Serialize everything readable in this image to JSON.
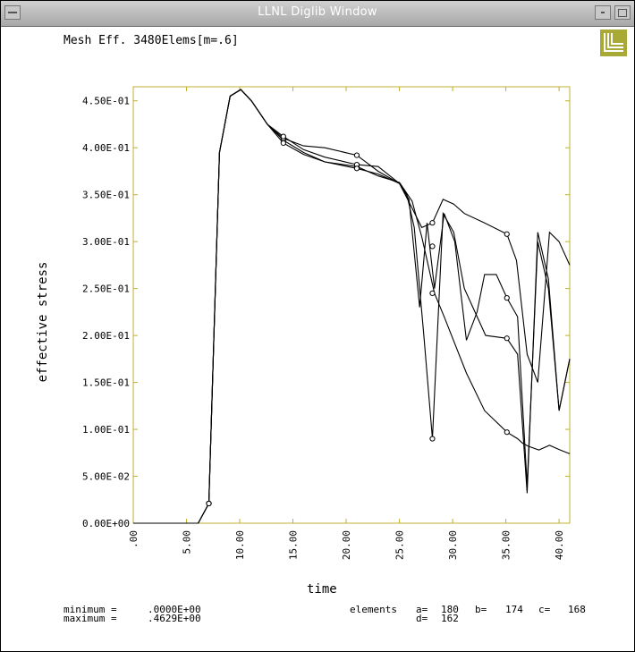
{
  "window": {
    "title": "LLNL Diglib Window",
    "logo_icon": "llnl-logo-icon"
  },
  "plot": {
    "title": "Mesh Eff. 3480Elems[m=.6]",
    "xlabel": "time",
    "ylabel": "effective stress",
    "stats": {
      "minimum_label": "minimum =",
      "minimum_value": ".0000E+00",
      "maximum_label": "maximum =",
      "maximum_value": ".4629E+00"
    },
    "elements": {
      "label": "elements",
      "a_label": "a=",
      "a_value": "180",
      "b_label": "b=",
      "b_value": "174",
      "c_label": "c=",
      "c_value": "168",
      "d_label": "d=",
      "d_value": "162"
    }
  },
  "chart_data": {
    "type": "line",
    "xlim": [
      0,
      41
    ],
    "ylim": [
      0,
      0.465
    ],
    "frame_color": "#c0b030",
    "xticks": [
      0,
      5,
      10,
      15,
      20,
      25,
      30,
      35,
      40
    ],
    "xtick_labels": [
      ".00",
      "5.00",
      "10.00",
      "15.00",
      "20.00",
      "25.00",
      "30.00",
      "35.00",
      "40.00"
    ],
    "yticks": [
      0,
      0.05,
      0.1,
      0.15,
      0.2,
      0.25,
      0.3,
      0.35,
      0.4,
      0.45
    ],
    "ytick_labels": [
      "0.00E+00",
      "5.00E-02",
      "1.00E-01",
      "1.50E-01",
      "2.00E-01",
      "2.50E-01",
      "3.00E-01",
      "3.50E-01",
      "4.00E-01",
      "4.50E-01"
    ],
    "grid": false,
    "series": [
      {
        "name": "a",
        "x": [
          0,
          6.1,
          7.1,
          8.1,
          9.1,
          10.1,
          11.1,
          12.6,
          14.1,
          16,
          18,
          21,
          23,
          25,
          26.2,
          27.1,
          27.8,
          28.3,
          29.2,
          31.3,
          33,
          35.1,
          36.1,
          36.6,
          37.1,
          38.1,
          39.1,
          40.1,
          41
        ],
        "y": [
          0,
          0,
          0.021,
          0.395,
          0.455,
          0.462,
          0.45,
          0.425,
          0.408,
          0.395,
          0.385,
          0.38,
          0.37,
          0.363,
          0.343,
          0.305,
          0.27,
          0.245,
          0.22,
          0.16,
          0.12,
          0.097,
          0.09,
          0.085,
          0.082,
          0.078,
          0.083,
          0.078,
          0.074
        ]
      },
      {
        "name": "b",
        "x": [
          0,
          6.1,
          7.1,
          8.1,
          9.1,
          10.1,
          11.1,
          12.6,
          14.1,
          16,
          18,
          21,
          23,
          25,
          26,
          27.1,
          28.1,
          29.1,
          30.1,
          31.1,
          33,
          35.1,
          36,
          37,
          38,
          39.1,
          40,
          41
        ],
        "y": [
          0,
          0,
          0.021,
          0.395,
          0.455,
          0.462,
          0.45,
          0.425,
          0.41,
          0.402,
          0.4,
          0.392,
          0.375,
          0.362,
          0.34,
          0.315,
          0.32,
          0.345,
          0.34,
          0.33,
          0.32,
          0.308,
          0.28,
          0.18,
          0.15,
          0.31,
          0.3,
          0.275
        ]
      },
      {
        "name": "c",
        "x": [
          0,
          6.1,
          7.1,
          8.1,
          9.1,
          10.1,
          11.1,
          12.6,
          14.1,
          16,
          18,
          21,
          23,
          25,
          25.9,
          26.9,
          27.6,
          28.3,
          29.2,
          30.2,
          31.3,
          32.3,
          33,
          34.1,
          35.1,
          36.1,
          37,
          38,
          39,
          40,
          41
        ],
        "y": [
          0,
          0,
          0.021,
          0.395,
          0.455,
          0.462,
          0.45,
          0.425,
          0.412,
          0.398,
          0.39,
          0.382,
          0.38,
          0.362,
          0.345,
          0.23,
          0.32,
          0.25,
          0.33,
          0.3,
          0.195,
          0.225,
          0.265,
          0.265,
          0.24,
          0.22,
          0.04,
          0.3,
          0.25,
          0.12,
          0.175
        ]
      },
      {
        "name": "d",
        "x": [
          0,
          6.1,
          7.1,
          8.1,
          9.1,
          10.1,
          11.1,
          12.6,
          14.1,
          16,
          18,
          21,
          23,
          25,
          25.7,
          26.4,
          27.3,
          28.1,
          29.1,
          30.1,
          31.1,
          32.1,
          33.1,
          35.1,
          36.1,
          37,
          38,
          39,
          40,
          41
        ],
        "y": [
          0,
          0,
          0.021,
          0.395,
          0.455,
          0.462,
          0.45,
          0.425,
          0.405,
          0.393,
          0.385,
          0.378,
          0.372,
          0.362,
          0.35,
          0.315,
          0.2,
          0.09,
          0.33,
          0.31,
          0.25,
          0.225,
          0.2,
          0.197,
          0.18,
          0.032,
          0.31,
          0.26,
          0.12,
          0.175
        ]
      }
    ],
    "markers": {
      "a": [
        [
          7.1,
          0.021
        ],
        [
          14.1,
          0.408
        ],
        [
          21,
          0.38
        ],
        [
          28.1,
          0.245
        ],
        [
          35.1,
          0.097
        ]
      ],
      "b": [
        [
          7.1,
          0.021
        ],
        [
          14.1,
          0.41
        ],
        [
          21,
          0.392
        ],
        [
          28.1,
          0.32
        ],
        [
          35.1,
          0.308
        ]
      ],
      "c": [
        [
          7.1,
          0.021
        ],
        [
          14.1,
          0.412
        ],
        [
          21,
          0.382
        ],
        [
          28.1,
          0.295
        ],
        [
          35.1,
          0.24
        ]
      ],
      "d": [
        [
          7.1,
          0.021
        ],
        [
          14.1,
          0.405
        ],
        [
          21,
          0.378
        ],
        [
          28.1,
          0.09
        ],
        [
          35.1,
          0.197
        ]
      ]
    }
  }
}
